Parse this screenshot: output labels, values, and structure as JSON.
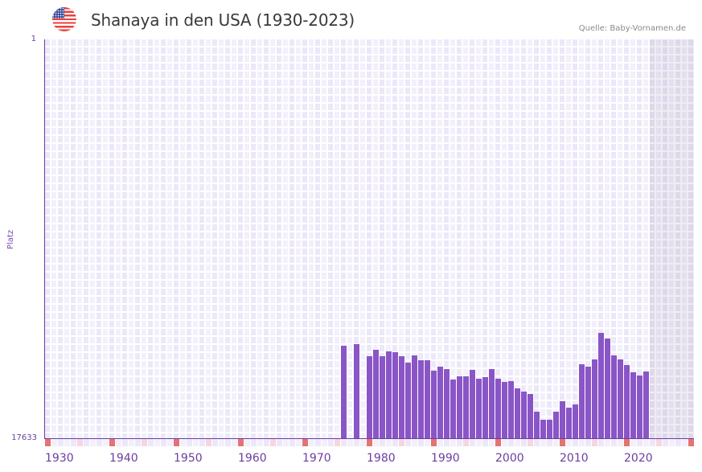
{
  "header": {
    "flag_icon": "us-flag-icon",
    "title": "Shanaya in den USA (1930-2023)",
    "source": "Quelle: Baby-Vornamen.de"
  },
  "colors": {
    "bar": "#8a55c7",
    "axis": "#6a3ea1",
    "decade_marker": "#e57373",
    "half_decade_marker": "#f6d6df",
    "grid_dark": "#ece8f9",
    "grid_light": "#f3f0fc"
  },
  "chart_data": {
    "type": "bar",
    "title": "Shanaya in den USA (1930-2023)",
    "xlabel": "",
    "ylabel": "Platz",
    "y_scale": "log",
    "y_inverted": true,
    "ylim": [
      1,
      17633
    ],
    "y_ticks": [
      "1",
      "17633"
    ],
    "x_range": [
      1930,
      2030
    ],
    "x_ticks": [
      "1930",
      "1940",
      "1950",
      "1960",
      "1970",
      "1980",
      "1990",
      "2000",
      "2010",
      "2020"
    ],
    "future_shaded_from": 2024,
    "grid": true,
    "legend": null,
    "categories": [
      1976,
      1978,
      1980,
      1981,
      1982,
      1983,
      1984,
      1985,
      1986,
      1987,
      1988,
      1989,
      1990,
      1991,
      1992,
      1993,
      1994,
      1995,
      1996,
      1997,
      1998,
      1999,
      2000,
      2001,
      2002,
      2003,
      2004,
      2005,
      2006,
      2007,
      2008,
      2009,
      2010,
      2011,
      2012,
      2013,
      2014,
      2015,
      2016,
      2017,
      2018,
      2019,
      2020,
      2021,
      2022,
      2023
    ],
    "values": [
      1830,
      1760,
      2360,
      2020,
      2360,
      2100,
      2140,
      2360,
      2770,
      2310,
      2610,
      2610,
      3370,
      3050,
      3240,
      4180,
      3870,
      3870,
      3300,
      4100,
      3940,
      3240,
      4100,
      4440,
      4350,
      5200,
      5620,
      5970,
      9200,
      11200,
      11200,
      9200,
      7130,
      8350,
      7710,
      2870,
      3050,
      2560,
      1330,
      1530,
      2310,
      2560,
      2930,
      3500,
      3790,
      3430
    ]
  }
}
